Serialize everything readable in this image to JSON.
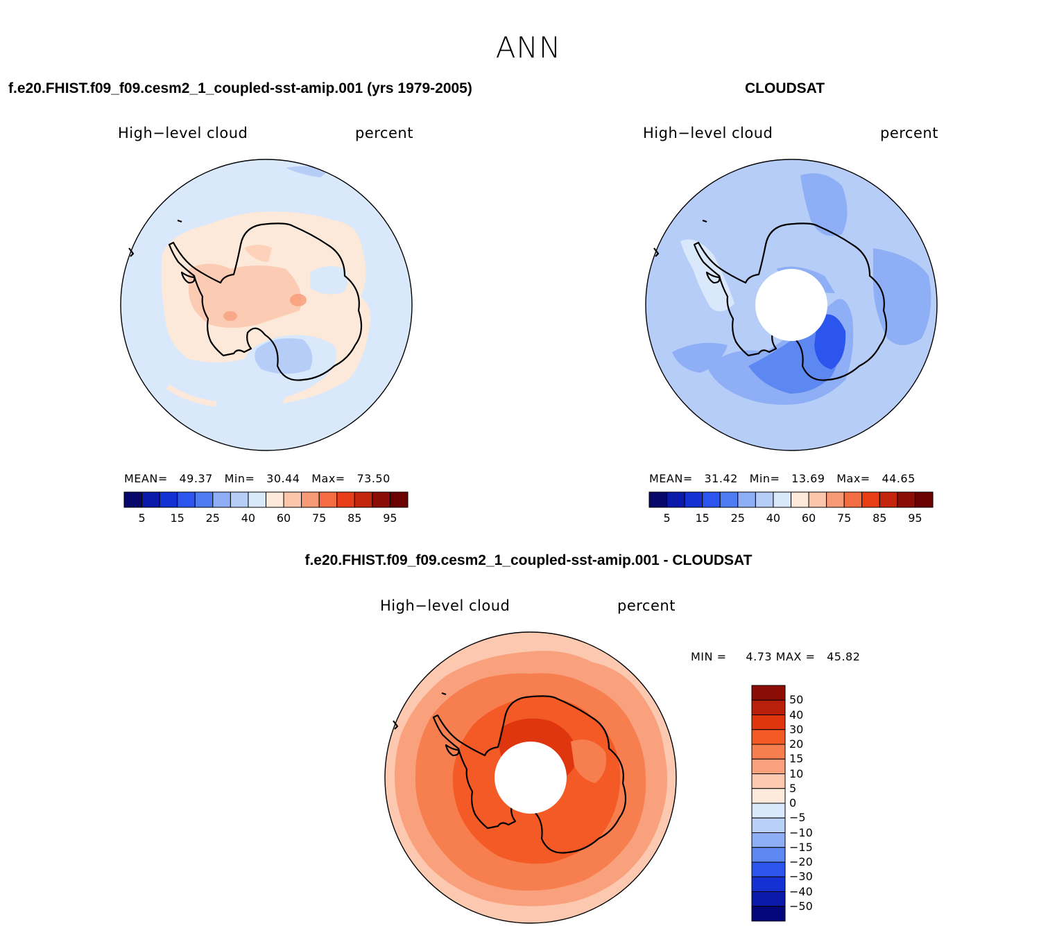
{
  "main_title": "ANN",
  "panels": [
    {
      "title": "f.e20.FHIST.f09_f09.cesm2_1_coupled-sst-amip.001 (yrs 1979-2005)",
      "variable": "High−level cloud",
      "units": "percent",
      "stats": {
        "mean_label": "MEAN=",
        "mean": "49.37",
        "min_label": "Min=",
        "min": "30.44",
        "max_label": "Max=",
        "max": "73.50"
      }
    },
    {
      "title": "CLOUDSAT",
      "variable": "High−level cloud",
      "units": "percent",
      "stats": {
        "mean_label": "MEAN=",
        "mean": "31.42",
        "min_label": "Min=",
        "min": "13.69",
        "max_label": "Max=",
        "max": "44.65"
      }
    },
    {
      "title": "f.e20.FHIST.f09_f09.cesm2_1_coupled-sst-amip.001 - CLOUDSAT",
      "variable": "High−level cloud",
      "units": "percent",
      "stats": {
        "min_label": "MIN =",
        "min": "4.73",
        "max_label": "MAX =",
        "max": "45.82"
      }
    }
  ],
  "colorbar_main": {
    "colors": [
      "#08086b",
      "#0b1aa8",
      "#1432d4",
      "#2b55ec",
      "#4f7cf0",
      "#8eaff6",
      "#b6cdf8",
      "#d9e8fb",
      "#fde9d9",
      "#fcc6ad",
      "#f89a76",
      "#f46c42",
      "#e73e17",
      "#c2250b",
      "#8c0d06",
      "#6b0202"
    ],
    "labels": [
      "5",
      "15",
      "25",
      "40",
      "60",
      "75",
      "85",
      "95"
    ]
  },
  "colorbar_diff": {
    "colors_top_to_bottom": [
      "#8c0d06",
      "#b8200b",
      "#e0360f",
      "#f45a25",
      "#f77f4f",
      "#f9a07c",
      "#fcc8b0",
      "#fdeadc",
      "#d9e8fb",
      "#b9d0f9",
      "#8eaff6",
      "#5d88f2",
      "#2b55ec",
      "#1432d4",
      "#0b1aa8",
      "#04077a"
    ],
    "labels": [
      "50",
      "40",
      "30",
      "20",
      "15",
      "10",
      "5",
      "0",
      "−5",
      "−10",
      "−15",
      "−20",
      "−30",
      "−40",
      "−50"
    ]
  }
}
